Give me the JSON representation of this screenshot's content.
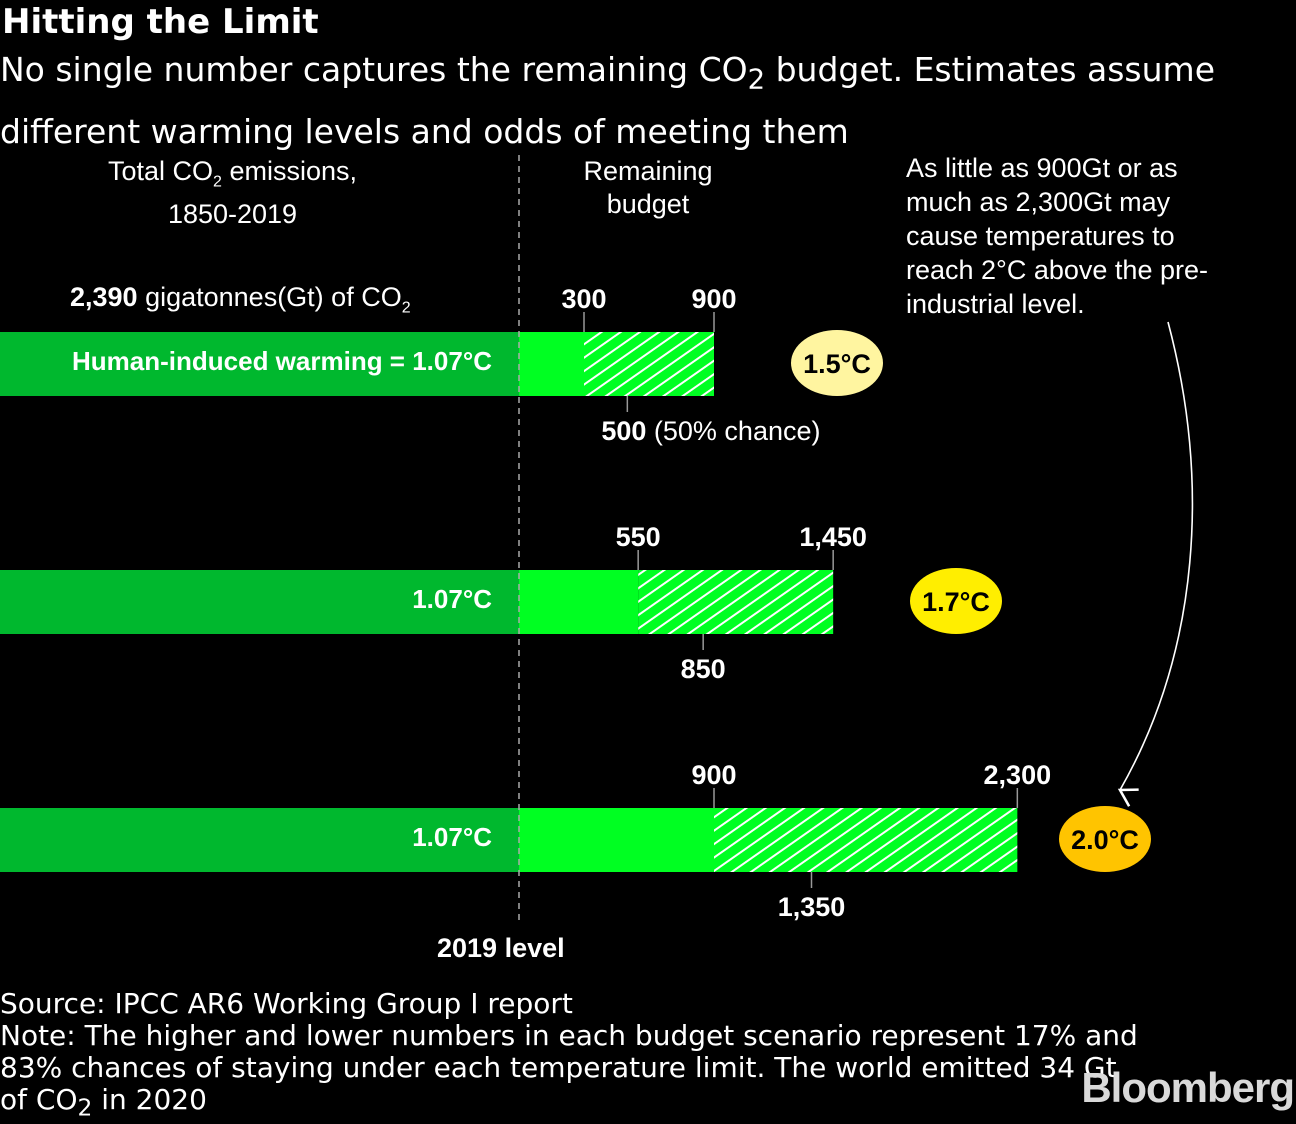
{
  "title": "Hitting the Limit",
  "subtitle_pre": "No single number captures the remaining CO",
  "subtitle_post": " budget. Estimates assume different warming levels and odds of meeting them",
  "left_header_1": "Total CO",
  "left_header_2": " emissions,",
  "left_header_3": "1850-2019",
  "right_header": "Remaining budget",
  "total_bold": "2,390",
  "total_rest": " gigatonnes(Gt) of CO",
  "sub2": "2",
  "annotation": "As little as 900Gt or as much as 2,300Gt may cause temperatures to reach 2°C above the pre-industrial level.",
  "baseline_label": "2019 level",
  "mid_suffix": " (50% chance)",
  "source": "Source: IPCC AR6 Working Group I report",
  "note_1": "Note: The higher and lower numbers in each budget scenario represent 17% and",
  "note_2": "83% chances of staying under each temperature limit. The world emitted 34 Gt",
  "note_3_pre": "of CO",
  "note_3_post": " in 2020",
  "logo": "Bloomberg",
  "colors": {
    "past": "#00b82e",
    "solid": "#00ff22",
    "badge_1": "#fff5a0",
    "badge_2": "#ffee00",
    "badge_3": "#ffc400"
  },
  "chart_data": {
    "type": "bar",
    "title": "Hitting the Limit",
    "unit": "Gt CO2",
    "past_emissions": 2390,
    "rows": [
      {
        "bar_label": "Human-induced warming = 1.07°C",
        "temp": "1.5°C",
        "low": 300,
        "mid": 500,
        "high": 900,
        "low_label": "300",
        "mid_label": "500",
        "high_label": "900"
      },
      {
        "bar_label": "1.07°C",
        "temp": "1.7°C",
        "low": 550,
        "mid": 850,
        "high": 1450,
        "low_label": "550",
        "mid_label": "850",
        "high_label": "1,450"
      },
      {
        "bar_label": "1.07°C",
        "temp": "2.0°C",
        "low": 900,
        "mid": 1350,
        "high": 2300,
        "low_label": "900",
        "mid_label": "1,350",
        "high_label": "2,300"
      }
    ]
  }
}
